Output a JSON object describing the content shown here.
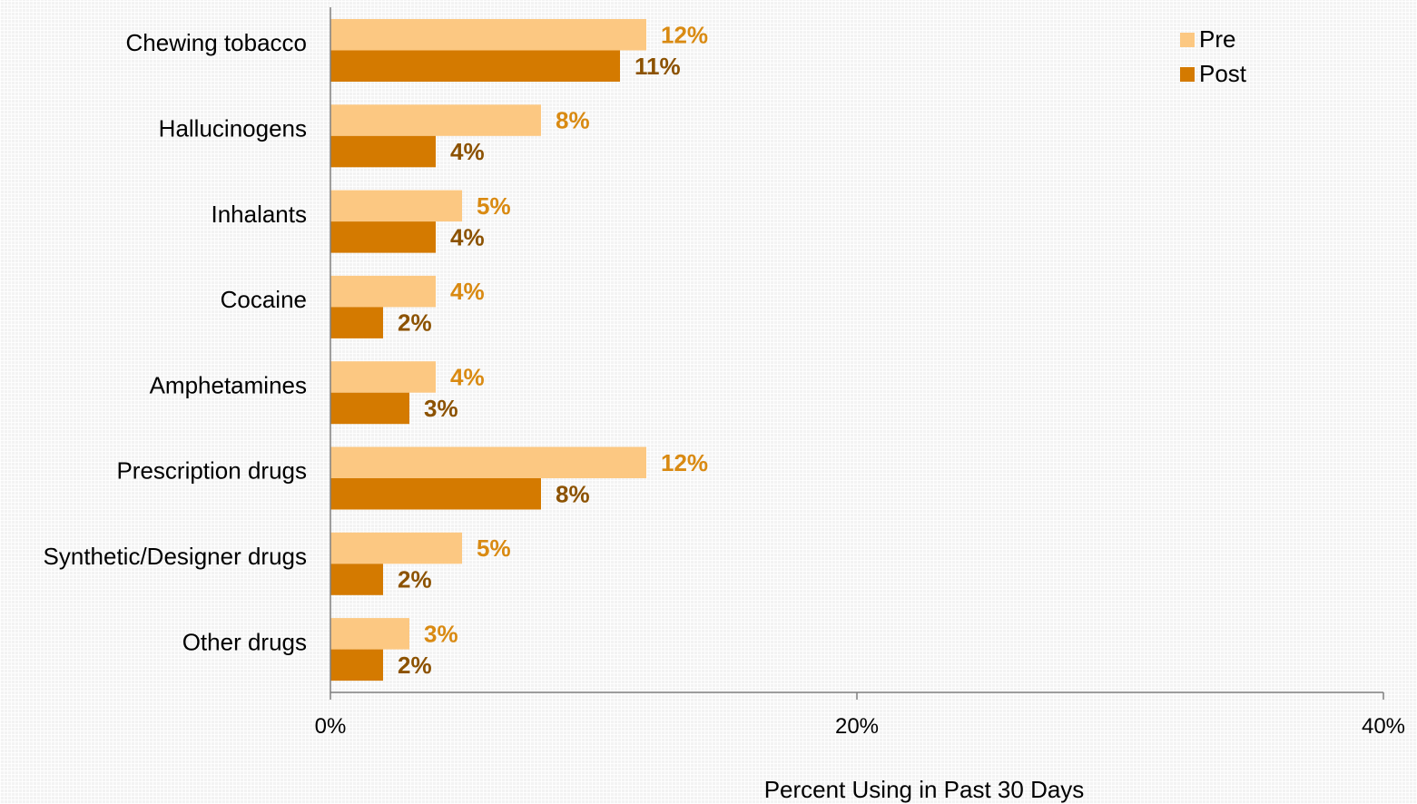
{
  "chart_data": {
    "type": "bar",
    "orientation": "horizontal",
    "categories": [
      "Chewing tobacco",
      "Hallucinogens",
      "Inhalants",
      "Cocaine",
      "Amphetamines",
      "Prescription drugs",
      "Synthetic/Designer drugs",
      "Other drugs"
    ],
    "series": [
      {
        "name": "Pre",
        "values": [
          12,
          8,
          5,
          4,
          4,
          12,
          5,
          3
        ],
        "labels": [
          "12%",
          "8%",
          "5%",
          "4%",
          "4%",
          "12%",
          "5%",
          "3%"
        ],
        "color": "#fcc882",
        "label_color": "#d98a12"
      },
      {
        "name": "Post",
        "values": [
          11,
          4,
          4,
          2,
          3,
          8,
          2,
          2
        ],
        "labels": [
          "11%",
          "4%",
          "4%",
          "2%",
          "3%",
          "8%",
          "2%",
          "2%"
        ],
        "color": "#d47a00",
        "label_color": "#8c5200"
      }
    ],
    "xlim": [
      0,
      40
    ],
    "xticks": [
      0,
      20,
      40
    ],
    "xtick_labels": [
      "0%",
      "20%",
      "40%"
    ],
    "xlabel": "Percent Using in Past 30 Days",
    "ylabel": "",
    "title": "",
    "legend_position": "top-right",
    "grid": false
  }
}
